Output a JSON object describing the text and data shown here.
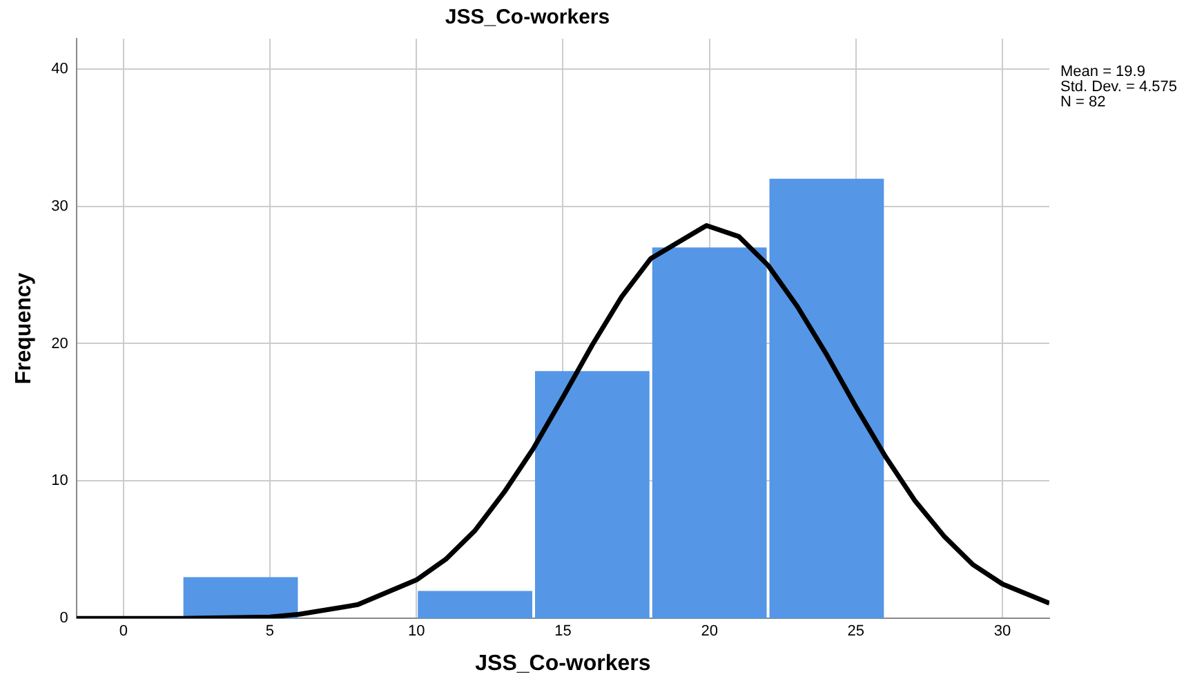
{
  "chart_data": {
    "type": "histogram",
    "title": "JSS_Co-workers",
    "xlabel": "JSS_Co-workers",
    "ylabel": "Frequency",
    "bins": [
      2,
      6,
      10,
      14,
      18,
      22,
      26
    ],
    "values": [
      3,
      0,
      2,
      18,
      27,
      32
    ],
    "color": "#5596e6",
    "series": [
      {
        "type": "line",
        "color": "#000000",
        "x": [
          -1.6,
          2,
          5,
          6,
          8,
          10,
          11,
          12,
          13,
          14,
          15,
          16,
          17,
          18,
          19.9,
          21,
          22,
          23,
          24,
          25,
          26,
          27,
          28,
          29,
          30,
          31.6
        ],
        "values": [
          0,
          0,
          0.1,
          0.3,
          1,
          2.8,
          4.3,
          6.4,
          9.2,
          12.4,
          16.1,
          19.9,
          23.4,
          26.2,
          28.6,
          27.8,
          25.7,
          22.7,
          19.2,
          15.4,
          11.8,
          8.6,
          6,
          3.9,
          2.5,
          1.1
        ]
      }
    ],
    "xlim": [
      -1.6,
      31.6
    ],
    "xticks": [
      0,
      5,
      10,
      15,
      20,
      25,
      30
    ],
    "ylim": [
      0,
      42.2
    ],
    "yticks": [
      0,
      10,
      20,
      30,
      40
    ],
    "grid": true,
    "legend": false,
    "annotations": [
      "Mean = 19.9",
      "Std. Dev. = 4.575",
      "N = 82"
    ]
  }
}
